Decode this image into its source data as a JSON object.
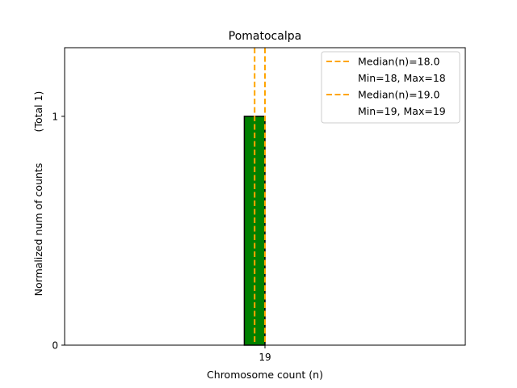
{
  "chart_data": {
    "type": "bar",
    "title": "Pomatocalpa",
    "xlabel": "Chromosome count (n)",
    "ylabel": "Normalized num of counts",
    "ylabel_note": "(Total 1)",
    "x_ticks": [
      19
    ],
    "y_ticks": [
      0,
      1
    ],
    "xlim": [
      9.3,
      28.7
    ],
    "ylim": [
      0,
      1.3
    ],
    "bars": [
      {
        "x": 18.5,
        "width": 1.0,
        "value": 1
      }
    ],
    "baseline": {
      "from": 9.3,
      "to": 20.3
    },
    "median_lines": [
      {
        "x": 18.5,
        "label": "Median(n)=18.0",
        "range": "Min=18, Max=18"
      },
      {
        "x": 19.0,
        "label": "Median(n)=19.0",
        "range": "Min=19, Max=19"
      }
    ],
    "legend_position": "upper right",
    "grid": false,
    "colors": {
      "bar_fill": "#008000",
      "bar_edge": "#000000",
      "median_line": "#FFA500",
      "axis": "#000000"
    }
  }
}
